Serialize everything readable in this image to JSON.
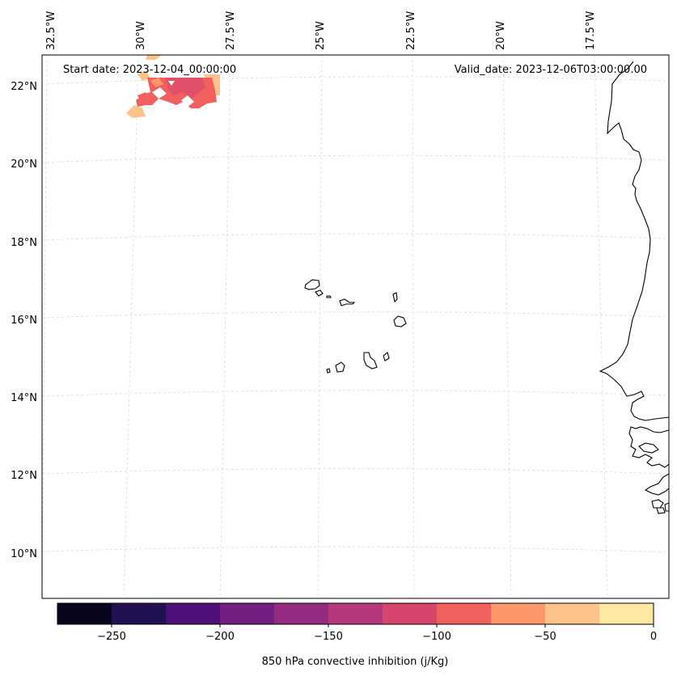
{
  "header": {
    "start_date": "Start date: 2023-12-04_00:00:00",
    "valid_date": "Valid_date: 2023-12-06T03:00:00.00"
  },
  "map": {
    "lon_labels": [
      "32.5°W",
      "30°W",
      "27.5°W",
      "25°W",
      "22.5°W",
      "20°W",
      "17.5°W"
    ],
    "lat_labels": [
      "22°N",
      "20°N",
      "18°N",
      "16°N",
      "14°N",
      "12°N",
      "10°N"
    ],
    "coastline_color": "#000000",
    "gridline_color": "#d9d9d9"
  },
  "colorbar": {
    "label": "850 hPa convective inhibition (j/Kg)",
    "ticks": [
      "−250",
      "−200",
      "−150",
      "−100",
      "−50",
      "0"
    ],
    "colors": [
      "#07061c",
      "#221150",
      "#4e0f78",
      "#721f81",
      "#932b80",
      "#b6377a",
      "#d8456c",
      "#f1605d",
      "#fd9668",
      "#fec38b",
      "#fde9a2"
    ]
  },
  "chart_data": {
    "type": "heatmap",
    "title": "850 hPa convective inhibition (j/Kg)",
    "levels": [
      -275,
      -250,
      -225,
      -200,
      -175,
      -150,
      -125,
      -100,
      -75,
      -50,
      -25,
      0
    ],
    "colorbar_ticks": [
      -250,
      -200,
      -150,
      -100,
      -50,
      0
    ],
    "x_ticks": [
      "32.5°W",
      "30°W",
      "27.5°W",
      "25°W",
      "22.5°W",
      "20°W",
      "17.5°W"
    ],
    "y_ticks": [
      "22°N",
      "20°N",
      "18°N",
      "16°N",
      "14°N",
      "12°N",
      "10°N"
    ],
    "lon_range": [
      -33.0,
      -15.5
    ],
    "lat_range": [
      9.0,
      22.5
    ],
    "notes": "Only a small patch of CIN between -100 and -25 J/kg near 21.5-22.5N, 28-30.5W; elsewhere no shading."
  }
}
